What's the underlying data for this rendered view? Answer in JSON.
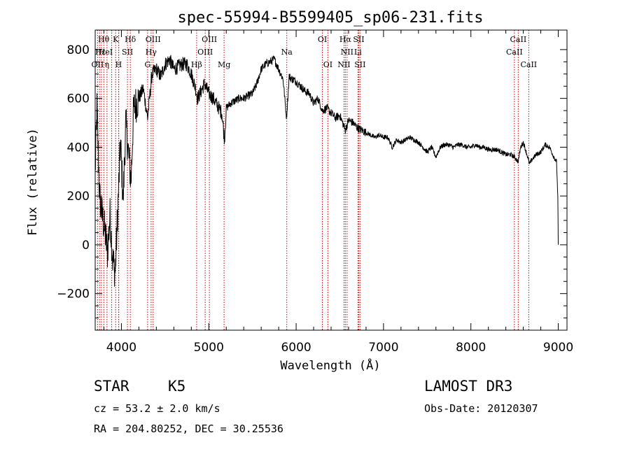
{
  "chart_data": {
    "type": "line",
    "title": "spec-55994-B5599405_sp06-231.fits",
    "xlabel": "Wavelength (Å)",
    "ylabel": "Flux (relative)",
    "xlim": [
      3700,
      9100
    ],
    "ylim": [
      -350,
      880
    ],
    "xticks": [
      4000,
      5000,
      6000,
      7000,
      8000,
      9000
    ],
    "yticks": [
      -200,
      0,
      200,
      400,
      600,
      800
    ],
    "spectrum_anchors": [
      [
        3700,
        300
      ],
      [
        3720,
        560
      ],
      [
        3750,
        200
      ],
      [
        3780,
        120
      ],
      [
        3810,
        60
      ],
      [
        3840,
        -30
      ],
      [
        3870,
        120
      ],
      [
        3900,
        -60
      ],
      [
        3930,
        -110
      ],
      [
        3960,
        160
      ],
      [
        3990,
        420
      ],
      [
        4020,
        180
      ],
      [
        4050,
        500
      ],
      [
        4080,
        380
      ],
      [
        4110,
        260
      ],
      [
        4140,
        560
      ],
      [
        4200,
        600
      ],
      [
        4250,
        640
      ],
      [
        4300,
        520
      ],
      [
        4350,
        700
      ],
      [
        4400,
        720
      ],
      [
        4450,
        690
      ],
      [
        4500,
        740
      ],
      [
        4550,
        760
      ],
      [
        4600,
        720
      ],
      [
        4650,
        730
      ],
      [
        4700,
        740
      ],
      [
        4750,
        740
      ],
      [
        4800,
        700
      ],
      [
        4850,
        640
      ],
      [
        4870,
        600
      ],
      [
        4900,
        620
      ],
      [
        4950,
        660
      ],
      [
        5000,
        620
      ],
      [
        5050,
        600
      ],
      [
        5100,
        570
      ],
      [
        5150,
        540
      ],
      [
        5180,
        430
      ],
      [
        5200,
        560
      ],
      [
        5250,
        580
      ],
      [
        5300,
        590
      ],
      [
        5350,
        600
      ],
      [
        5400,
        600
      ],
      [
        5450,
        610
      ],
      [
        5500,
        620
      ],
      [
        5550,
        660
      ],
      [
        5600,
        720
      ],
      [
        5650,
        740
      ],
      [
        5700,
        750
      ],
      [
        5750,
        760
      ],
      [
        5800,
        720
      ],
      [
        5850,
        680
      ],
      [
        5890,
        520
      ],
      [
        5920,
        690
      ],
      [
        5950,
        680
      ],
      [
        6000,
        670
      ],
      [
        6050,
        650
      ],
      [
        6100,
        630
      ],
      [
        6150,
        620
      ],
      [
        6200,
        580
      ],
      [
        6250,
        600
      ],
      [
        6300,
        550
      ],
      [
        6350,
        560
      ],
      [
        6400,
        540
      ],
      [
        6450,
        520
      ],
      [
        6500,
        530
      ],
      [
        6563,
        470
      ],
      [
        6600,
        510
      ],
      [
        6650,
        500
      ],
      [
        6700,
        480
      ],
      [
        6750,
        470
      ],
      [
        6800,
        460
      ],
      [
        6850,
        450
      ],
      [
        6900,
        440
      ],
      [
        6950,
        450
      ],
      [
        7000,
        440
      ],
      [
        7050,
        440
      ],
      [
        7100,
        400
      ],
      [
        7150,
        430
      ],
      [
        7200,
        420
      ],
      [
        7250,
        430
      ],
      [
        7300,
        440
      ],
      [
        7350,
        430
      ],
      [
        7400,
        420
      ],
      [
        7450,
        400
      ],
      [
        7500,
        380
      ],
      [
        7550,
        400
      ],
      [
        7600,
        360
      ],
      [
        7650,
        400
      ],
      [
        7700,
        410
      ],
      [
        7750,
        410
      ],
      [
        7800,
        400
      ],
      [
        7850,
        410
      ],
      [
        7900,
        410
      ],
      [
        7950,
        400
      ],
      [
        8000,
        400
      ],
      [
        8050,
        410
      ],
      [
        8100,
        400
      ],
      [
        8150,
        400
      ],
      [
        8200,
        390
      ],
      [
        8250,
        390
      ],
      [
        8300,
        390
      ],
      [
        8350,
        380
      ],
      [
        8400,
        370
      ],
      [
        8450,
        370
      ],
      [
        8500,
        360
      ],
      [
        8540,
        340
      ],
      [
        8570,
        400
      ],
      [
        8600,
        420
      ],
      [
        8650,
        360
      ],
      [
        8670,
        330
      ],
      [
        8700,
        350
      ],
      [
        8750,
        370
      ],
      [
        8800,
        380
      ],
      [
        8850,
        410
      ],
      [
        8900,
        400
      ],
      [
        8950,
        360
      ],
      [
        8980,
        340
      ],
      [
        8995,
        200
      ],
      [
        9000,
        0
      ]
    ],
    "vertical_lines": [
      3727,
      3750,
      3771,
      3798,
      3835,
      3889,
      3934,
      3968,
      3970,
      4069,
      4102,
      4300,
      4340,
      4363,
      4861,
      4959,
      5007,
      5175,
      5893,
      6300,
      6363,
      6548,
      6563,
      6583,
      6707,
      6716,
      6731,
      8498,
      8542,
      8662
    ],
    "line_labels": [
      {
        "text": "Hθ",
        "wl": 3797,
        "row": 1
      },
      {
        "text": "OII",
        "wl": 3727,
        "row": 3
      },
      {
        "text": "Hε",
        "wl": 3760,
        "row": 2
      },
      {
        "text": "HeI",
        "wl": 3820,
        "row": 2
      },
      {
        "text": "η",
        "wl": 3835,
        "row": 3
      },
      {
        "text": "K",
        "wl": 3934,
        "row": 1
      },
      {
        "text": "H",
        "wl": 3968,
        "row": 3
      },
      {
        "text": "SII",
        "wl": 4069,
        "row": 2
      },
      {
        "text": "Hδ",
        "wl": 4102,
        "row": 1
      },
      {
        "text": "OIII",
        "wl": 4363,
        "row": 1
      },
      {
        "text": "Hγ",
        "wl": 4340,
        "row": 2
      },
      {
        "text": "G",
        "wl": 4300,
        "row": 3
      },
      {
        "text": "OIII",
        "wl": 5007,
        "row": 1
      },
      {
        "text": "OIII",
        "wl": 4959,
        "row": 2
      },
      {
        "text": "Hβ",
        "wl": 4861,
        "row": 3
      },
      {
        "text": "Mg",
        "wl": 5175,
        "row": 3
      },
      {
        "text": "Na",
        "wl": 5893,
        "row": 2
      },
      {
        "text": "OI",
        "wl": 6300,
        "row": 1
      },
      {
        "text": "OI",
        "wl": 6363,
        "row": 3
      },
      {
        "text": "Hα",
        "wl": 6563,
        "row": 1
      },
      {
        "text": "SII",
        "wl": 6716,
        "row": 1
      },
      {
        "text": "NII",
        "wl": 6583,
        "row": 2
      },
      {
        "text": "Li",
        "wl": 6707,
        "row": 2
      },
      {
        "text": "NII",
        "wl": 6548,
        "row": 3
      },
      {
        "text": "SII",
        "wl": 6731,
        "row": 3
      },
      {
        "text": "CaII",
        "wl": 8542,
        "row": 1
      },
      {
        "text": "CaII",
        "wl": 8498,
        "row": 2
      },
      {
        "text": "CaII",
        "wl": 8662,
        "row": 3
      }
    ]
  },
  "info": {
    "class": "STAR",
    "subclass": "K5",
    "survey": "LAMOST DR3",
    "cz": "cz = 53.2 ± 2.0 km/s",
    "obs_date": "Obs-Date: 20120307",
    "radec": "RA = 204.80252, DEC =  30.25536"
  },
  "colors": {
    "spectrum": "#000000",
    "line_markers": "#c80000",
    "axes": "#000000"
  }
}
